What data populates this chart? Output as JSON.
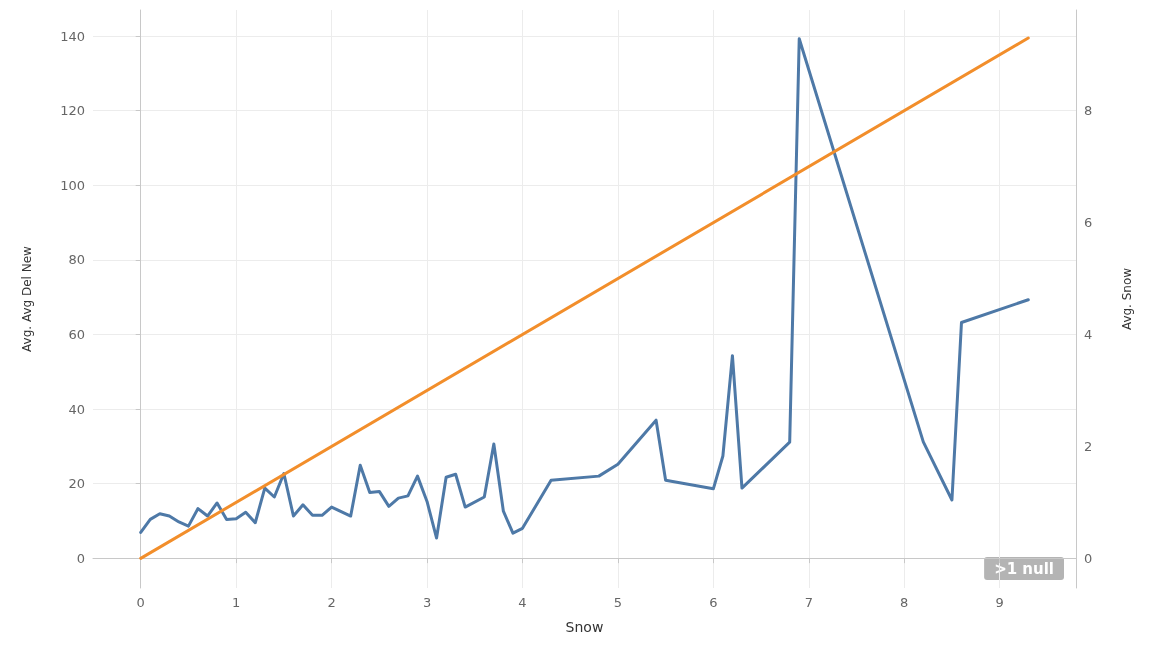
{
  "chart_data": {
    "type": "line",
    "xlabel": "Snow",
    "ylabel": "Avg. Avg Del New",
    "y2label": "Avg. Snow",
    "xlim": [
      -0.5,
      9.8
    ],
    "xticks": [
      0,
      1,
      2,
      3,
      4,
      5,
      6,
      7,
      8,
      9
    ],
    "ylim": [
      -8,
      147
    ],
    "yticks": [
      0,
      20,
      40,
      60,
      80,
      100,
      120,
      140
    ],
    "y2lim": [
      -0.53,
      9.8
    ],
    "y2ticks": [
      0,
      2,
      4,
      6,
      8
    ],
    "grid": true,
    "marker": "none",
    "line_style": "solid",
    "annotations": [
      ">1 null"
    ],
    "series": [
      {
        "color": "#4e79a7",
        "x": [
          0,
          0.1,
          0.2,
          0.3,
          0.4,
          0.5,
          0.6,
          0.7,
          0.8,
          0.9,
          1.0,
          1.1,
          1.2,
          1.3,
          1.4,
          1.5,
          1.6,
          1.7,
          1.8,
          1.9,
          2.0,
          2.2,
          2.3,
          2.4,
          2.5,
          2.6,
          2.7,
          2.8,
          2.9,
          3.0,
          3.1,
          3.2,
          3.3,
          3.4,
          3.6,
          3.7,
          3.8,
          3.9,
          4.0,
          4.3,
          4.8,
          5.0,
          5.4,
          5.5,
          6.0,
          6.1,
          6.2,
          6.3,
          6.8,
          6.9,
          8.2,
          8.5,
          8.6,
          9.3
        ],
        "values": [
          6.9,
          10.4,
          11.9,
          11.3,
          9.7,
          8.6,
          13.3,
          11.3,
          14.8,
          10.4,
          10.6,
          12.3,
          9.5,
          18.8,
          16.4,
          22.7,
          11.3,
          14.3,
          11.5,
          11.5,
          13.7,
          11.3,
          24.9,
          17.6,
          17.9,
          13.9,
          16.1,
          16.7,
          22.0,
          15.2,
          5.4,
          21.7,
          22.5,
          13.7,
          16.4,
          30.6,
          12.6,
          6.7,
          8.0,
          20.9,
          22.0,
          25.2,
          37.0,
          20.9,
          18.6,
          27.4,
          54.3,
          18.8,
          31.1,
          139.3,
          31.2,
          15.6,
          63.2,
          69.3
        ]
      },
      {
        "color": "#f28e2b",
        "axis": "y2",
        "x": [
          0,
          9.3
        ],
        "values": [
          0,
          9.3
        ]
      }
    ]
  }
}
